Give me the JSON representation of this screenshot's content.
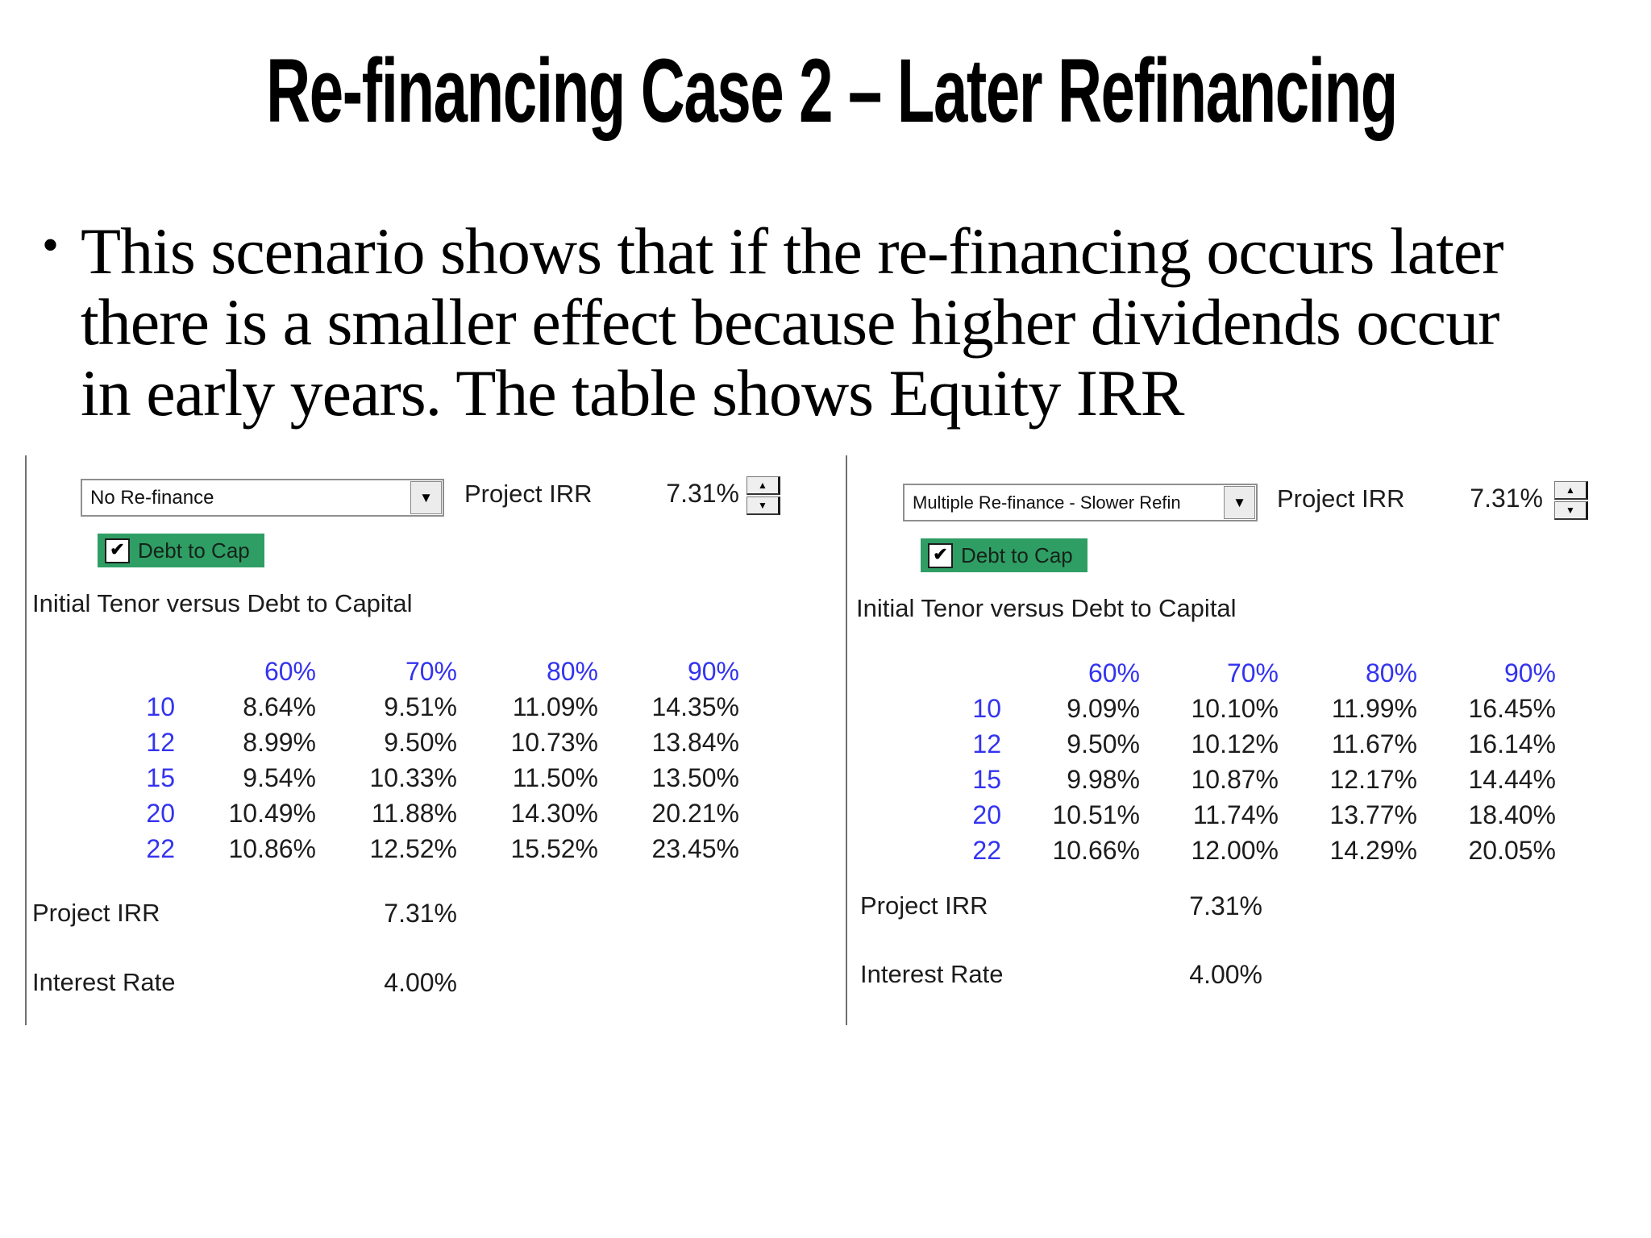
{
  "slide": {
    "title": "Re-financing Case 2 – Later Refinancing",
    "bullet_lines": [
      "This scenario shows that if the re-financing occurs later",
      "there is a smaller effect because higher dividends occur",
      "in early years. The table shows Equity IRR"
    ]
  },
  "colors": {
    "header_blue": "#3333f0",
    "checkbox_green": "#2f9e64",
    "text_dark": "#1c1c1c"
  },
  "icons": {
    "dropdown_arrow": "▼",
    "spinner_up": "▲",
    "spinner_down": "▼",
    "check_glyph": "✔",
    "bullet_glyph": "•"
  },
  "panels": [
    {
      "scenario_dropdown": {
        "value": "No Re-finance"
      },
      "project_irr": {
        "label": "Project IRR",
        "value": "7.31%"
      },
      "checkbox": {
        "label": "Debt to Cap",
        "checked": true
      },
      "matrix_title": "Initial Tenor versus Debt to Capital",
      "matrix": {
        "col_headers": [
          "60%",
          "70%",
          "80%",
          "90%"
        ],
        "row_headers": [
          "10",
          "12",
          "15",
          "20",
          "22"
        ],
        "rows": [
          [
            "8.64%",
            "9.51%",
            "11.09%",
            "14.35%"
          ],
          [
            "8.99%",
            "9.50%",
            "10.73%",
            "13.84%"
          ],
          [
            "9.54%",
            "10.33%",
            "11.50%",
            "13.50%"
          ],
          [
            "10.49%",
            "11.88%",
            "14.30%",
            "20.21%"
          ],
          [
            "10.86%",
            "12.52%",
            "15.52%",
            "23.45%"
          ]
        ]
      },
      "footer": {
        "project_irr_label": "Project IRR",
        "project_irr_value": "7.31%",
        "interest_rate_label": "Interest Rate",
        "interest_rate_value": "4.00%"
      }
    },
    {
      "scenario_dropdown": {
        "value": "Multiple Re-finance - Slower Refin"
      },
      "project_irr": {
        "label": "Project IRR",
        "value": "7.31%"
      },
      "checkbox": {
        "label": "Debt to Cap",
        "checked": true
      },
      "matrix_title": "Initial Tenor versus Debt to Capital",
      "matrix": {
        "col_headers": [
          "60%",
          "70%",
          "80%",
          "90%"
        ],
        "row_headers": [
          "10",
          "12",
          "15",
          "20",
          "22"
        ],
        "rows": [
          [
            "9.09%",
            "10.10%",
            "11.99%",
            "16.45%"
          ],
          [
            "9.50%",
            "10.12%",
            "11.67%",
            "16.14%"
          ],
          [
            "9.98%",
            "10.87%",
            "12.17%",
            "14.44%"
          ],
          [
            "10.51%",
            "11.74%",
            "13.77%",
            "18.40%"
          ],
          [
            "10.66%",
            "12.00%",
            "14.29%",
            "20.05%"
          ]
        ]
      },
      "footer": {
        "project_irr_label": "Project IRR",
        "project_irr_value": "7.31%",
        "interest_rate_label": "Interest Rate",
        "interest_rate_value": "4.00%"
      }
    }
  ]
}
